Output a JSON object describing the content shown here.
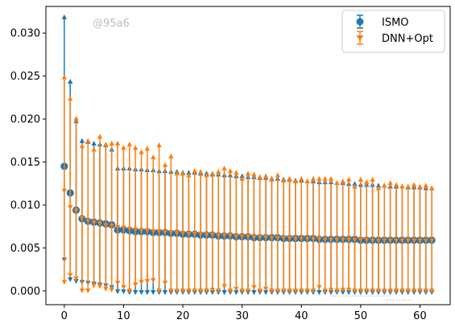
{
  "chart_data": {
    "type": "scatter",
    "subtype": "errorbar",
    "title": "",
    "xlabel": "",
    "ylabel": "",
    "xlim": [
      -3.1,
      65.1
    ],
    "ylim": [
      -0.0016,
      0.0331
    ],
    "xticks": [
      "0",
      "10",
      "20",
      "30",
      "40",
      "50",
      "60"
    ],
    "yticks": [
      "0.000",
      "0.005",
      "0.010",
      "0.015",
      "0.020",
      "0.025",
      "0.030"
    ],
    "grid": false,
    "legend": {
      "position": "top-right",
      "entries": [
        "ISMO",
        "DNN+Opt"
      ]
    },
    "watermark": "@95a6",
    "footnote": [
      "Paper: groups/heuristics/fig-errorbar-ismo-dnn.pdf",
      "Reviewer: no-login:19"
    ],
    "series": [
      {
        "name": "ISMO",
        "color": "#1f77b4",
        "x": [
          0,
          1,
          2,
          3,
          4,
          5,
          6,
          7,
          8,
          9,
          10,
          11,
          12,
          13,
          14,
          15,
          16,
          17,
          18,
          19,
          20,
          21,
          22,
          23,
          24,
          25,
          26,
          27,
          28,
          29,
          30,
          31,
          32,
          33,
          34,
          35,
          36,
          37,
          38,
          39,
          40,
          41,
          42,
          43,
          44,
          45,
          46,
          47,
          48,
          49,
          50,
          51,
          52,
          53,
          54,
          55,
          56,
          57,
          58,
          59,
          60,
          61,
          62
        ],
        "mean": [
          0.0145,
          0.0114,
          0.0094,
          0.0084,
          0.0081,
          0.008,
          0.0079,
          0.0078,
          0.0077,
          0.0071,
          0.0071,
          0.007,
          0.0069,
          0.0069,
          0.0069,
          0.0068,
          0.0068,
          0.0068,
          0.0067,
          0.0067,
          0.0066,
          0.0066,
          0.0066,
          0.0065,
          0.0065,
          0.0065,
          0.0064,
          0.0064,
          0.0064,
          0.0063,
          0.0063,
          0.0063,
          0.0062,
          0.0062,
          0.0062,
          0.0062,
          0.0062,
          0.0061,
          0.0061,
          0.0061,
          0.0061,
          0.0061,
          0.0061,
          0.006,
          0.006,
          0.006,
          0.006,
          0.006,
          0.006,
          0.006,
          0.0059,
          0.0059,
          0.0059,
          0.0059,
          0.0059,
          0.0059,
          0.0059,
          0.0059,
          0.0059,
          0.0059,
          0.0059,
          0.0059,
          0.0059
        ],
        "upper": [
          0.0319,
          0.0244,
          0.0198,
          0.0175,
          0.0174,
          0.0172,
          0.0171,
          0.017,
          0.0165,
          0.0143,
          0.0143,
          0.0143,
          0.0142,
          0.0142,
          0.0141,
          0.0141,
          0.014,
          0.014,
          0.0139,
          0.0139,
          0.0138,
          0.0138,
          0.0138,
          0.0137,
          0.0137,
          0.0136,
          0.0136,
          0.0135,
          0.0135,
          0.0134,
          0.0134,
          0.0133,
          0.0133,
          0.0132,
          0.0132,
          0.0131,
          0.0131,
          0.013,
          0.013,
          0.0129,
          0.0129,
          0.0128,
          0.0128,
          0.0127,
          0.0127,
          0.0127,
          0.0126,
          0.0126,
          0.0125,
          0.0125,
          0.0124,
          0.0124,
          0.0124,
          0.0123,
          0.0123,
          0.0122,
          0.0122,
          0.0122,
          0.0121,
          0.0121,
          0.0121,
          0.012,
          0.012
        ],
        "lower": [
          0.0036,
          0.0013,
          0.0011,
          0.001,
          0.0009,
          0.0008,
          0.0007,
          0.0006,
          0.0004,
          -0.0001,
          -0.0001,
          -0.0002,
          -0.0002,
          -0.0002,
          -0.0002,
          -0.0002,
          -0.0002,
          -0.0002,
          -0.0002,
          -0.0002,
          -0.0002,
          -0.0002,
          -0.0002,
          -0.0002,
          -0.0002,
          -0.0002,
          -0.0002,
          -0.0002,
          -0.0002,
          -0.0002,
          -0.0002,
          -0.0002,
          -0.0002,
          -0.0002,
          -0.0002,
          -0.0002,
          -0.0002,
          -0.0002,
          -0.0002,
          -0.0002,
          -0.0002,
          -0.0002,
          -0.0002,
          -0.0002,
          -0.0002,
          -0.0002,
          -0.0002,
          -0.0002,
          -0.0002,
          -0.0002,
          -0.0002,
          -0.0002,
          -0.0002,
          -0.0002,
          -0.0002,
          -0.0002,
          -0.0002,
          -0.0002,
          -0.0002,
          -0.0002,
          -0.0002,
          -0.0002,
          -0.0002
        ]
      },
      {
        "name": "DNN+Opt",
        "color": "#ff7f0e",
        "x": [
          0,
          1,
          2,
          3,
          4,
          5,
          6,
          7,
          8,
          9,
          10,
          11,
          12,
          13,
          14,
          15,
          16,
          17,
          18,
          19,
          20,
          21,
          22,
          23,
          24,
          25,
          26,
          27,
          28,
          29,
          30,
          31,
          32,
          33,
          34,
          35,
          36,
          37,
          38,
          39,
          40,
          41,
          42,
          43,
          44,
          45,
          46,
          47,
          48,
          49,
          50,
          51,
          52,
          53,
          54,
          55,
          56,
          57,
          58,
          59,
          60,
          61,
          62
        ],
        "mean": [
          0.0117,
          0.0098,
          0.0094,
          0.0085,
          0.0082,
          0.008,
          0.0079,
          0.0077,
          0.0076,
          0.0075,
          0.0074,
          0.0073,
          0.0072,
          0.0071,
          0.0071,
          0.007,
          0.007,
          0.0069,
          0.0069,
          0.0068,
          0.0068,
          0.0067,
          0.0067,
          0.0067,
          0.0066,
          0.0066,
          0.0065,
          0.0065,
          0.0065,
          0.0064,
          0.0064,
          0.0064,
          0.0063,
          0.0063,
          0.0063,
          0.0062,
          0.0062,
          0.0062,
          0.0062,
          0.0061,
          0.0061,
          0.0061,
          0.0061,
          0.0061,
          0.006,
          0.006,
          0.006,
          0.006,
          0.006,
          0.006,
          0.006,
          0.006,
          0.0059,
          0.0059,
          0.0059,
          0.0059,
          0.0059,
          0.0059,
          0.0059,
          0.0059,
          0.0059,
          0.0059,
          0.0059
        ],
        "upper": [
          0.0249,
          0.0224,
          0.0201,
          0.0169,
          0.0175,
          0.0165,
          0.018,
          0.0171,
          0.0172,
          0.0172,
          0.0167,
          0.0171,
          0.0167,
          0.0162,
          0.0166,
          0.0156,
          0.017,
          0.0147,
          0.0157,
          0.0137,
          0.0137,
          0.0135,
          0.014,
          0.0139,
          0.0135,
          0.0137,
          0.0139,
          0.0143,
          0.014,
          0.0138,
          0.0131,
          0.0137,
          0.0136,
          0.0133,
          0.0134,
          0.013,
          0.0135,
          0.0129,
          0.0131,
          0.0128,
          0.0131,
          0.0128,
          0.0131,
          0.0131,
          0.0131,
          0.0131,
          0.0126,
          0.0128,
          0.013,
          0.0122,
          0.013,
          0.0127,
          0.013,
          0.012,
          0.0123,
          0.0126,
          0.0124,
          0.0122,
          0.0122,
          0.0124,
          0.0122,
          0.0123,
          0.012
        ],
        "lower": [
          0.001,
          0.0018,
          0.0014,
          0.0,
          0.0,
          0.0006,
          0.0005,
          0.0002,
          0.0001,
          0.0009,
          0.0004,
          0.0,
          0.0007,
          0.001,
          0.0011,
          0.0012,
          0.0,
          0.0009,
          0.0,
          0.0,
          0.0,
          0.0,
          0.0,
          0.0,
          0.0,
          0.0001,
          0.0,
          0.0005,
          0.0,
          0.0002,
          0.0,
          0.0,
          0.0004,
          0.0,
          0.0002,
          0.0,
          0.0,
          0.0,
          0.0,
          0.0,
          0.0,
          0.0,
          0.0,
          0.0004,
          0.0,
          0.0001,
          0.0,
          0.0001,
          0.0001,
          0.0,
          0.0,
          0.0,
          0.0,
          0.0,
          0.0,
          0.0,
          0.0,
          0.0,
          0.0,
          0.0,
          0.0,
          0.0,
          0.0
        ]
      }
    ]
  }
}
